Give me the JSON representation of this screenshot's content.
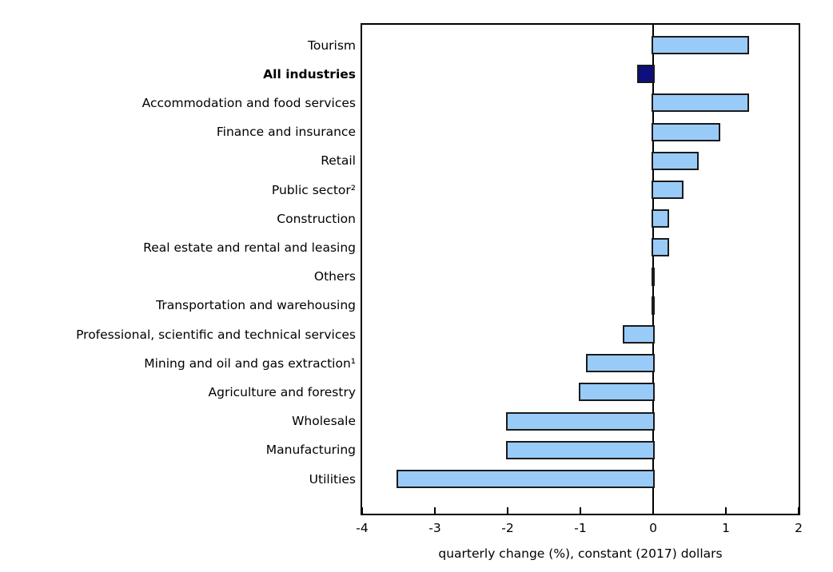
{
  "chart_data": {
    "type": "bar",
    "orientation": "horizontal",
    "title": "",
    "xlabel": "quarterly change (%), constant (2017) dollars",
    "ylabel": "",
    "xlim": [
      -4,
      2
    ],
    "xticks": [
      -4,
      -3,
      -2,
      -1,
      0,
      1,
      2
    ],
    "grid": false,
    "legend": "none",
    "categories": [
      "Tourism",
      "All industries",
      "Accommodation and food services",
      "Finance and insurance",
      "Retail",
      "Public sector²",
      "Construction",
      "Real estate and rental and leasing",
      "Others",
      "Transportation and warehousing",
      "Professional, scientific and technical services",
      "Mining and oil and gas extraction¹",
      "Agriculture and forestry",
      "Wholesale",
      "Manufacturing",
      "Utilities"
    ],
    "values": [
      1.3,
      -0.2,
      1.3,
      0.9,
      0.6,
      0.4,
      0.2,
      0.2,
      0.0,
      0.0,
      -0.4,
      -0.9,
      -1.0,
      -2.0,
      -2.0,
      -3.5
    ],
    "highlight": {
      "category": "All industries",
      "index": 1
    },
    "colors": {
      "bar_fill": "#99CBF9",
      "bar_highlight_fill": "#0E0E7E",
      "bar_border": "#1A1A1A",
      "axis": "#000000",
      "background": "#FFFFFF"
    }
  }
}
